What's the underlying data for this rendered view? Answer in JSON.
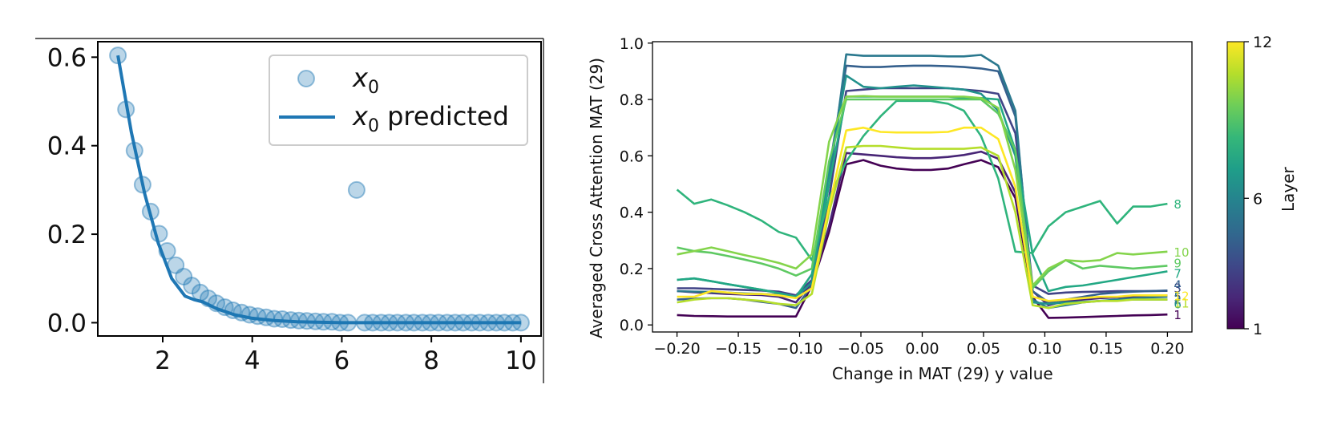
{
  "chart_data": [
    {
      "type": "scatter",
      "title": "",
      "xlabel": "",
      "ylabel": "",
      "xlim": [
        0.55,
        10.45
      ],
      "ylim": [
        -0.03,
        0.635
      ],
      "x_ticks": [
        2,
        4,
        6,
        8,
        10
      ],
      "y_ticks": [
        0.0,
        0.2,
        0.4,
        0.6
      ],
      "x_tick_labels": [
        "2",
        "4",
        "6",
        "8",
        "10"
      ],
      "y_tick_labels": [
        "0.0",
        "0.2",
        "0.4",
        "0.6"
      ],
      "color": "#1f77b4",
      "legend": {
        "position": "top-right",
        "entries": [
          {
            "label": "x",
            "sub": "0",
            "suffix": "",
            "marker": "circle"
          },
          {
            "label": "x",
            "sub": "0",
            "suffix": " predicted",
            "marker": "line"
          }
        ]
      },
      "series": [
        {
          "name": "x0",
          "kind": "points",
          "x": [
            1.0,
            1.18,
            1.37,
            1.55,
            1.73,
            1.92,
            2.1,
            2.29,
            2.47,
            2.65,
            2.84,
            3.02,
            3.2,
            3.39,
            3.57,
            3.76,
            3.94,
            4.12,
            4.31,
            4.49,
            4.67,
            4.86,
            5.04,
            5.22,
            5.41,
            5.59,
            5.78,
            5.96,
            6.14,
            6.33,
            6.51,
            6.69,
            6.88,
            7.06,
            7.24,
            7.43,
            7.61,
            7.8,
            7.98,
            8.16,
            8.35,
            8.53,
            8.71,
            8.9,
            9.08,
            9.27,
            9.45,
            9.63,
            9.82,
            10.0
          ],
          "y": [
            0.604,
            0.482,
            0.389,
            0.312,
            0.251,
            0.201,
            0.162,
            0.13,
            0.104,
            0.084,
            0.068,
            0.055,
            0.044,
            0.035,
            0.028,
            0.023,
            0.018,
            0.015,
            0.012,
            0.009,
            0.008,
            0.006,
            0.005,
            0.004,
            0.003,
            0.002,
            0.002,
            0.0,
            0.0,
            0.3,
            0.0,
            0.0,
            0.0,
            0.0,
            0.0,
            0.0,
            0.0,
            0.0,
            0.0,
            0.0,
            0.0,
            0.0,
            0.0,
            0.0,
            0.0,
            0.0,
            0.0,
            0.0,
            0.0,
            0.0
          ]
        },
        {
          "name": "x0 predicted",
          "kind": "line",
          "x": [
            1.0,
            1.3,
            1.6,
            1.9,
            2.2,
            2.5,
            2.7,
            2.9,
            3.2,
            3.6,
            4.0,
            4.5,
            5.0,
            6.0,
            7.0,
            8.0,
            9.0,
            10.0
          ],
          "y": [
            0.604,
            0.43,
            0.29,
            0.18,
            0.1,
            0.06,
            0.052,
            0.047,
            0.032,
            0.018,
            0.01,
            0.005,
            0.002,
            0.0,
            0.0,
            0.0,
            0.0,
            0.0
          ]
        }
      ]
    },
    {
      "type": "line",
      "title": "",
      "xlabel": "Change in MAT (29) y value",
      "ylabel": "Averaged Cross Attention MAT (29)",
      "xlim": [
        -0.22,
        0.22
      ],
      "ylim": [
        -0.025,
        1.005
      ],
      "x_ticks": [
        -0.2,
        -0.15,
        -0.1,
        -0.05,
        0.0,
        0.05,
        0.1,
        0.15,
        0.2
      ],
      "y_ticks": [
        0.0,
        0.2,
        0.4,
        0.6,
        0.8,
        1.0
      ],
      "x_tick_labels": [
        "−0.20",
        "−0.15",
        "−0.10",
        "−0.05",
        "0.00",
        "0.05",
        "0.10",
        "0.15",
        "0.20"
      ],
      "y_tick_labels": [
        "0.0",
        "0.2",
        "0.4",
        "0.6",
        "0.8",
        "1.0"
      ],
      "x": [
        -0.2,
        -0.186,
        -0.172,
        -0.159,
        -0.145,
        -0.131,
        -0.117,
        -0.103,
        -0.09,
        -0.076,
        -0.062,
        -0.048,
        -0.034,
        -0.021,
        -0.007,
        0.007,
        0.021,
        0.034,
        0.048,
        0.062,
        0.076,
        0.09,
        0.103,
        0.117,
        0.131,
        0.145,
        0.159,
        0.172,
        0.186,
        0.2
      ],
      "colorbar": {
        "label": "Layer",
        "min": 1,
        "max": 12,
        "ticks": [
          "1",
          "6",
          "12"
        ],
        "stops": [
          "#440154",
          "#482878",
          "#3e4989",
          "#31688e",
          "#26828e",
          "#1f9e89",
          "#35b779",
          "#6ece58",
          "#b5de2b",
          "#fde725"
        ]
      },
      "series": [
        {
          "name": "1",
          "color": "#440154",
          "values": [
            0.035,
            0.032,
            0.031,
            0.03,
            0.03,
            0.03,
            0.03,
            0.03,
            0.14,
            0.33,
            0.57,
            0.585,
            0.565,
            0.555,
            0.55,
            0.55,
            0.555,
            0.57,
            0.585,
            0.56,
            0.45,
            0.1,
            0.025,
            0.026,
            0.028,
            0.03,
            0.032,
            0.034,
            0.035,
            0.037
          ]
        },
        {
          "name": "2",
          "color": "#482576",
          "values": [
            0.12,
            0.116,
            0.113,
            0.11,
            0.108,
            0.106,
            0.1,
            0.08,
            0.15,
            0.35,
            0.61,
            0.605,
            0.6,
            0.595,
            0.592,
            0.592,
            0.596,
            0.603,
            0.615,
            0.59,
            0.47,
            0.12,
            0.07,
            0.085,
            0.09,
            0.095,
            0.098,
            0.1,
            0.102,
            0.105
          ]
        },
        {
          "name": "3",
          "color": "#414487",
          "values": [
            0.13,
            0.13,
            0.128,
            0.126,
            0.124,
            0.122,
            0.118,
            0.105,
            0.16,
            0.45,
            0.83,
            0.835,
            0.84,
            0.84,
            0.84,
            0.84,
            0.84,
            0.835,
            0.83,
            0.82,
            0.68,
            0.14,
            0.11,
            0.115,
            0.117,
            0.118,
            0.12,
            0.12,
            0.12,
            0.121
          ]
        },
        {
          "name": "4",
          "color": "#35608d",
          "values": [
            0.09,
            0.093,
            0.095,
            0.095,
            0.09,
            0.082,
            0.075,
            0.06,
            0.14,
            0.55,
            0.92,
            0.915,
            0.915,
            0.918,
            0.92,
            0.92,
            0.918,
            0.915,
            0.91,
            0.9,
            0.74,
            0.12,
            0.08,
            0.09,
            0.1,
            0.11,
            0.115,
            0.118,
            0.12,
            0.122
          ]
        },
        {
          "name": "5",
          "color": "#2a788e",
          "values": [
            0.12,
            0.118,
            0.117,
            0.115,
            0.112,
            0.11,
            0.107,
            0.1,
            0.15,
            0.5,
            0.96,
            0.955,
            0.955,
            0.955,
            0.955,
            0.955,
            0.953,
            0.953,
            0.958,
            0.92,
            0.76,
            0.09,
            0.06,
            0.07,
            0.08,
            0.085,
            0.09,
            0.095,
            0.098,
            0.1
          ]
        },
        {
          "name": "6",
          "color": "#21918c",
          "values": [
            0.16,
            0.165,
            0.155,
            0.145,
            0.135,
            0.125,
            0.113,
            0.1,
            0.15,
            0.55,
            0.885,
            0.845,
            0.84,
            0.845,
            0.85,
            0.845,
            0.84,
            0.835,
            0.82,
            0.76,
            0.6,
            0.08,
            0.075,
            0.08,
            0.082,
            0.085,
            0.088,
            0.09,
            0.09,
            0.09
          ]
        },
        {
          "name": "7",
          "color": "#22a884",
          "values": [
            0.16,
            0.165,
            0.155,
            0.145,
            0.135,
            0.125,
            0.113,
            0.1,
            0.18,
            0.5,
            0.81,
            0.81,
            0.81,
            0.81,
            0.81,
            0.81,
            0.81,
            0.805,
            0.805,
            0.8,
            0.62,
            0.25,
            0.12,
            0.135,
            0.14,
            0.15,
            0.16,
            0.17,
            0.18,
            0.19
          ]
        },
        {
          "name": "8",
          "color": "#2fb47c",
          "values": [
            0.48,
            0.43,
            0.445,
            0.425,
            0.4,
            0.37,
            0.33,
            0.31,
            0.23,
            0.45,
            0.58,
            0.67,
            0.74,
            0.795,
            0.795,
            0.795,
            0.785,
            0.76,
            0.67,
            0.52,
            0.26,
            0.255,
            0.35,
            0.4,
            0.42,
            0.44,
            0.36,
            0.42,
            0.42,
            0.43
          ]
        },
        {
          "name": "9",
          "color": "#5ec962",
          "values": [
            0.275,
            0.262,
            0.256,
            0.245,
            0.232,
            0.218,
            0.2,
            0.175,
            0.2,
            0.58,
            0.8,
            0.8,
            0.8,
            0.8,
            0.8,
            0.8,
            0.8,
            0.8,
            0.8,
            0.75,
            0.62,
            0.13,
            0.19,
            0.23,
            0.2,
            0.21,
            0.205,
            0.2,
            0.205,
            0.21
          ]
        },
        {
          "name": "10",
          "color": "#84d44b",
          "values": [
            0.25,
            0.262,
            0.275,
            0.262,
            0.248,
            0.235,
            0.22,
            0.2,
            0.25,
            0.65,
            0.81,
            0.812,
            0.81,
            0.81,
            0.81,
            0.81,
            0.81,
            0.81,
            0.805,
            0.77,
            0.55,
            0.14,
            0.2,
            0.23,
            0.225,
            0.23,
            0.255,
            0.25,
            0.255,
            0.26
          ]
        },
        {
          "name": "11",
          "color": "#b5de2b",
          "values": [
            0.08,
            0.09,
            0.095,
            0.095,
            0.09,
            0.085,
            0.075,
            0.07,
            0.11,
            0.4,
            0.63,
            0.635,
            0.635,
            0.63,
            0.625,
            0.625,
            0.625,
            0.625,
            0.63,
            0.6,
            0.4,
            0.07,
            0.06,
            0.075,
            0.08,
            0.085,
            0.085,
            0.09,
            0.09,
            0.09
          ]
        },
        {
          "name": "12",
          "color": "#fde725",
          "values": [
            0.1,
            0.1,
            0.12,
            0.115,
            0.11,
            0.11,
            0.105,
            0.095,
            0.13,
            0.42,
            0.69,
            0.7,
            0.685,
            0.683,
            0.683,
            0.683,
            0.685,
            0.7,
            0.7,
            0.66,
            0.49,
            0.1,
            0.085,
            0.09,
            0.095,
            0.1,
            0.1,
            0.105,
            0.105,
            0.105
          ]
        }
      ]
    }
  ]
}
